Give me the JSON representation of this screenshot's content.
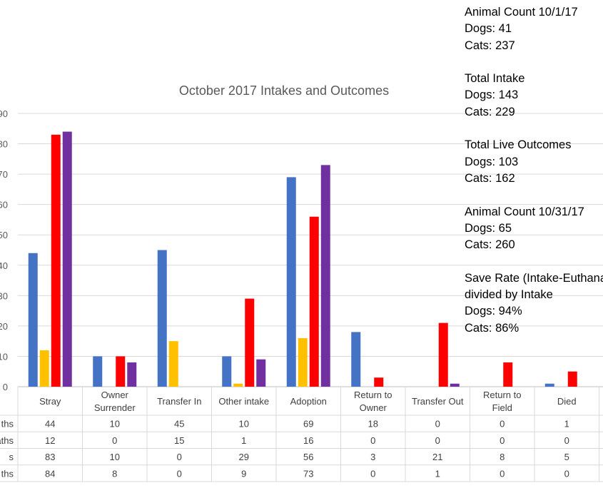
{
  "stats": {
    "start_heading": "Animal Count 10/1/17",
    "start_dogs": "Dogs: 41",
    "start_cats": "Cats: 237",
    "intake_heading": "Total Intake",
    "intake_dogs": "Dogs: 143",
    "intake_cats": "Cats: 229",
    "live_heading": "Total Live Outcomes",
    "live_dogs": "Dogs: 103",
    "live_cats": "Cats: 162",
    "end_heading": "Animal Count 10/31/17",
    "end_dogs": "Dogs: 65",
    "end_cats": "Cats: 260",
    "save_heading": "Save Rate (Intake-Euthanasia)",
    "save_subheading": "divided by Intake",
    "save_dogs": "Dogs: 94%",
    "save_cats": "Cats: 86%"
  },
  "chart_data": {
    "type": "bar",
    "title": "October 2017 Intakes and Outcomes",
    "categories": [
      "Stray",
      "Owner Surrender",
      "Transfer In",
      "Other intake",
      "Adoption",
      "Return to Owner",
      "Transfer Out",
      "Return to Field",
      "Died"
    ],
    "ylim": [
      0,
      90
    ],
    "yticks": [
      "0",
      "10",
      "20",
      "30",
      "40",
      "50",
      "60",
      "70",
      "80",
      "90"
    ],
    "grid": true,
    "data_table": true,
    "series": [
      {
        "name": "ths",
        "color": "#4472C4",
        "values": [
          44,
          10,
          45,
          10,
          69,
          18,
          0,
          0,
          1
        ]
      },
      {
        "name": "aths",
        "color": "#FFC000",
        "values": [
          12,
          0,
          15,
          1,
          16,
          0,
          0,
          0,
          0
        ]
      },
      {
        "name": "s",
        "color": "#FF0000",
        "values": [
          83,
          10,
          0,
          29,
          56,
          3,
          21,
          8,
          5
        ]
      },
      {
        "name": "ths",
        "color": "#7030A0",
        "values": [
          84,
          8,
          0,
          9,
          73,
          0,
          1,
          0,
          0
        ]
      }
    ]
  }
}
